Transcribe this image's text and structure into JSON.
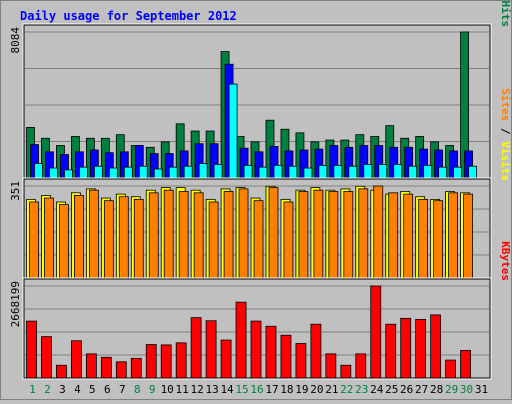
{
  "chart_data": {
    "type": "bar",
    "title": "Daily usage for September 2012",
    "categories": [
      "1",
      "2",
      "3",
      "4",
      "5",
      "6",
      "7",
      "8",
      "9",
      "10",
      "11",
      "12",
      "13",
      "14",
      "15",
      "16",
      "17",
      "18",
      "19",
      "20",
      "21",
      "22",
      "23",
      "24",
      "25",
      "26",
      "27",
      "28",
      "29",
      "30",
      "31"
    ],
    "weekend_days": [
      1,
      2,
      8,
      9,
      15,
      16,
      22,
      23,
      29,
      30
    ],
    "panels": [
      {
        "id": "hits",
        "ymax_label": "8084",
        "ymax": 8084,
        "legend": [
          {
            "text": "Pages",
            "color": "#00ffff"
          },
          {
            "text": " / ",
            "color": "#000000"
          },
          {
            "text": "Files",
            "color": "#0000ff"
          },
          {
            "text": " / ",
            "color": "#000000"
          },
          {
            "text": "Hits",
            "color": "#008040"
          }
        ],
        "series": [
          {
            "name": "Hits",
            "color": "#008040",
            "values": [
              2800,
              2200,
              1800,
              2300,
              2200,
              2200,
              2400,
              1800,
              1700,
              2000,
              3000,
              2600,
              2600,
              7000,
              2300,
              2000,
              3200,
              2700,
              2500,
              2000,
              2100,
              2100,
              2400,
              2300,
              2900,
              2200,
              2300,
              2000,
              1800,
              8084,
              0
            ]
          },
          {
            "name": "Files",
            "color": "#0000ff",
            "values": [
              1850,
              1450,
              1300,
              1450,
              1550,
              1400,
              1450,
              1800,
              1350,
              1350,
              1500,
              1900,
              1900,
              6300,
              1650,
              1450,
              1750,
              1500,
              1550,
              1600,
              1800,
              1700,
              1800,
              1800,
              1700,
              1700,
              1600,
              1550,
              1500,
              1500,
              0
            ]
          },
          {
            "name": "Pages",
            "color": "#00ffff",
            "values": [
              800,
              550,
              450,
              600,
              650,
              550,
              600,
              650,
              500,
              600,
              650,
              800,
              750,
              5200,
              700,
              600,
              700,
              650,
              550,
              700,
              700,
              650,
              750,
              750,
              750,
              650,
              700,
              600,
              600,
              650,
              0
            ]
          }
        ]
      },
      {
        "id": "visits",
        "ymax_label": "351",
        "ymax": 351,
        "legend": [
          {
            "text": "Sites",
            "color": "#ff8000"
          },
          {
            "text": " / ",
            "color": "#000000"
          },
          {
            "text": "Visits",
            "color": "#ffff00"
          }
        ],
        "series": [
          {
            "name": "Visits",
            "color": "#ffff00",
            "values": [
              300,
              315,
              290,
              325,
              340,
              305,
              320,
              310,
              335,
              345,
              345,
              335,
              300,
              340,
              345,
              305,
              350,
              300,
              335,
              345,
              335,
              340,
              350,
              335,
              320,
              330,
              310,
              300,
              330,
              325,
              0
            ]
          },
          {
            "name": "Sites",
            "color": "#ff8000",
            "values": [
              290,
              305,
              280,
              315,
              335,
              295,
              310,
              300,
              325,
              335,
              330,
              325,
              290,
              330,
              340,
              295,
              345,
              290,
              330,
              335,
              330,
              330,
              340,
              351,
              325,
              320,
              300,
              295,
              325,
              320,
              0
            ]
          }
        ]
      },
      {
        "id": "kbytes",
        "ymax_label": "2668199",
        "ymax": 2668199,
        "legend": [
          {
            "text": "KBytes",
            "color": "#ff0000"
          }
        ],
        "series": [
          {
            "name": "KBytes",
            "color": "#ff0000",
            "values": [
              1650000,
              1200000,
              370000,
              1080000,
              700000,
              600000,
              470000,
              570000,
              970000,
              960000,
              1020000,
              1750000,
              1660000,
              1100000,
              2200000,
              1650000,
              1500000,
              1240000,
              1000000,
              1560000,
              700000,
              370000,
              700000,
              2668199,
              1560000,
              1730000,
              1700000,
              1830000,
              520000,
              800000,
              0
            ]
          }
        ]
      }
    ]
  },
  "colors": {
    "background": "#c0c0c0",
    "title": "#0000ff",
    "grid": "#808080",
    "weekday_label": "#000000",
    "weekend_label": "#008040"
  }
}
